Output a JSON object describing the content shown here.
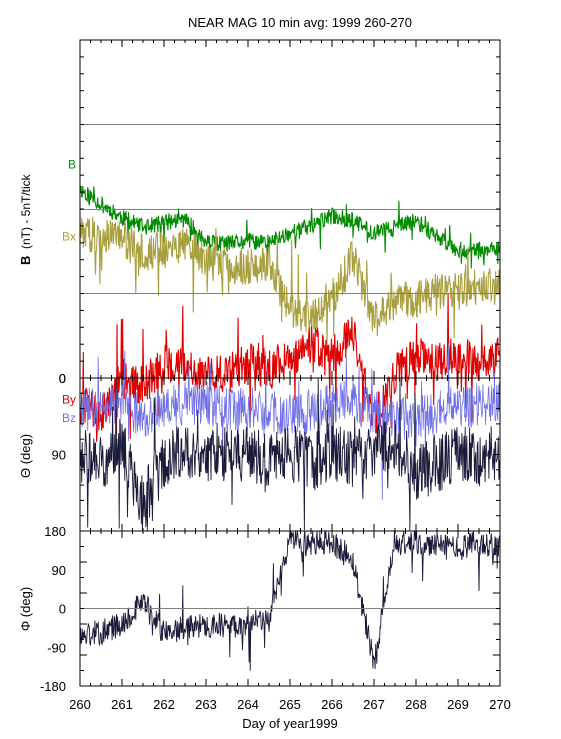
{
  "title": "NEAR MAG 10 min avg: 1999 260-270",
  "xlabel": "Day of year1999",
  "colors": {
    "B": "#008a00",
    "Bx": "#a8a040",
    "By": "#e00000",
    "Bz": "#7070e8",
    "angle": "#1a1a3a",
    "frame": "#000000",
    "refline": "#808080"
  },
  "chart_data": [
    {
      "type": "line",
      "panel": "top",
      "ylabel_bold": "B",
      "ylabel_rest": "(nT) - 5nT/tick",
      "x": [
        260,
        260.5,
        261,
        261.5,
        262,
        262.5,
        263,
        263.5,
        264,
        264.5,
        265,
        265.5,
        266,
        266.5,
        267,
        267.5,
        268,
        268.5,
        269,
        269.5,
        270
      ],
      "xticks": [
        "260",
        "261",
        "262",
        "263",
        "264",
        "265",
        "266",
        "267",
        "268",
        "269",
        "270"
      ],
      "yticks": [
        "0"
      ],
      "series": [
        {
          "name": "B",
          "color_key": "B",
          "values": [
            11.2,
            10.3,
            9.5,
            8.9,
            9.2,
            9.4,
            8.0,
            7.9,
            8.1,
            8.0,
            8.6,
            9.0,
            9.6,
            9.3,
            8.6,
            8.9,
            9.3,
            8.4,
            7.6,
            7.5,
            7.6
          ]
        },
        {
          "name": "Bx",
          "color_key": "Bx",
          "values": [
            8.6,
            8.4,
            8.3,
            7.4,
            7.6,
            8.0,
            6.9,
            6.7,
            6.6,
            6.8,
            4.0,
            3.6,
            4.7,
            7.2,
            3.4,
            4.6,
            4.6,
            5.2,
            5.1,
            5.4,
            5.4
          ]
        },
        {
          "name": "By",
          "color_key": "By",
          "values": [
            -1.5,
            -2.2,
            0.0,
            -0.5,
            0.8,
            1.0,
            0.2,
            0.2,
            0.9,
            0.5,
            1.2,
            2.0,
            1.4,
            2.6,
            -2.6,
            0.3,
            1.3,
            1.0,
            1.3,
            0.9,
            1.2
          ]
        },
        {
          "name": "Bz",
          "color_key": "Bz",
          "values": [
            -2.0,
            -1.8,
            -1.4,
            -2.3,
            -1.6,
            -1.5,
            -1.5,
            -1.8,
            -1.8,
            -2.0,
            -2.2,
            -2.1,
            -1.5,
            -1.4,
            -2.0,
            -2.5,
            -2.3,
            -2.1,
            -1.6,
            -1.6,
            -1.4
          ]
        }
      ]
    },
    {
      "type": "line",
      "panel": "theta",
      "ylabel": "Θ (deg)",
      "ylim": [
        0,
        180
      ],
      "inverted": true,
      "yticks": [
        "0",
        "90"
      ],
      "x": [
        260,
        260.5,
        261,
        261.5,
        262,
        262.5,
        263,
        263.5,
        264,
        264.5,
        265,
        265.5,
        266,
        266.5,
        267,
        267.5,
        268,
        268.5,
        269,
        269.5,
        270
      ],
      "values": [
        90,
        98,
        80,
        150,
        95,
        82,
        92,
        88,
        90,
        102,
        86,
        100,
        85,
        95,
        90,
        78,
        112,
        100,
        90,
        95,
        88
      ]
    },
    {
      "type": "line",
      "panel": "phi",
      "ylabel": "Φ (deg)",
      "ylim": [
        -180,
        180
      ],
      "yticks": [
        "180",
        "90",
        "0",
        "-90",
        "-180"
      ],
      "x": [
        260,
        260.5,
        261,
        261.5,
        262,
        262.5,
        263,
        263.5,
        264,
        264.5,
        265,
        265.5,
        266,
        266.5,
        267,
        267.5,
        268,
        268.5,
        269,
        269.5,
        270
      ],
      "values": [
        -65,
        -55,
        -35,
        20,
        -58,
        -45,
        -38,
        -40,
        -35,
        -28,
        165,
        150,
        155,
        110,
        -125,
        148,
        150,
        145,
        140,
        150,
        150
      ]
    }
  ]
}
